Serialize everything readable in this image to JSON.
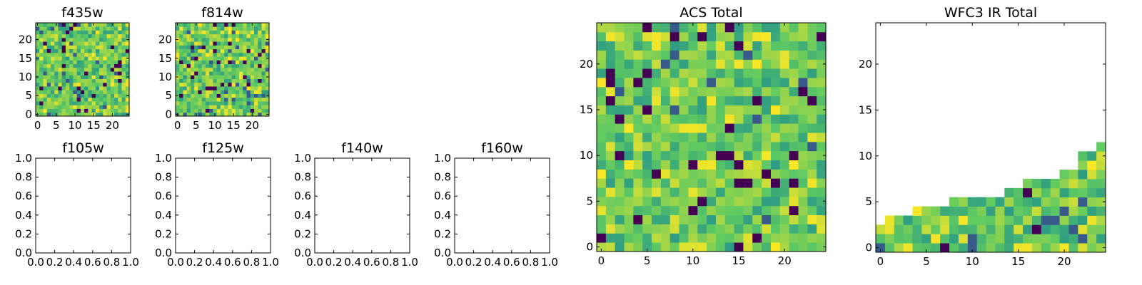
{
  "chart_data": [
    {
      "type": "heatmap",
      "title": "f435w",
      "xticks": [
        "0",
        "5",
        "10",
        "15",
        "20"
      ],
      "yticks": [
        "0",
        "5",
        "10",
        "15",
        "20"
      ],
      "xlim": [
        -0.5,
        24.5
      ],
      "ylim": [
        -0.5,
        24.5
      ],
      "grid_size": [
        25,
        25
      ],
      "fill_rows": "all",
      "colormap": "viridis",
      "seed": 11
    },
    {
      "type": "heatmap",
      "title": "f814w",
      "xticks": [
        "0",
        "5",
        "10",
        "15",
        "20"
      ],
      "yticks": [
        "0",
        "5",
        "10",
        "15",
        "20"
      ],
      "xlim": [
        -0.5,
        24.5
      ],
      "ylim": [
        -0.5,
        24.5
      ],
      "grid_size": [
        25,
        25
      ],
      "fill_rows": "all",
      "colormap": "viridis",
      "seed": 23
    },
    {
      "type": "heatmap",
      "title": "f105w",
      "xticks": [
        "0.0",
        "0.2",
        "0.4",
        "0.6",
        "0.8",
        "1.0"
      ],
      "yticks": [
        "0.0",
        "0.2",
        "0.4",
        "0.6",
        "0.8",
        "1.0"
      ],
      "xlim": [
        0,
        1
      ],
      "ylim": [
        0,
        1
      ],
      "empty": true
    },
    {
      "type": "heatmap",
      "title": "f125w",
      "xticks": [
        "0.0",
        "0.2",
        "0.4",
        "0.6",
        "0.8",
        "1.0"
      ],
      "yticks": [
        "0.0",
        "0.2",
        "0.4",
        "0.6",
        "0.8",
        "1.0"
      ],
      "xlim": [
        0,
        1
      ],
      "ylim": [
        0,
        1
      ],
      "empty": true
    },
    {
      "type": "heatmap",
      "title": "f140w",
      "xticks": [
        "0.0",
        "0.2",
        "0.4",
        "0.6",
        "0.8",
        "1.0"
      ],
      "yticks": [
        "0.0",
        "0.2",
        "0.4",
        "0.6",
        "0.8",
        "1.0"
      ],
      "xlim": [
        0,
        1
      ],
      "ylim": [
        0,
        1
      ],
      "empty": true
    },
    {
      "type": "heatmap",
      "title": "f160w",
      "xticks": [
        "0.0",
        "0.2",
        "0.4",
        "0.6",
        "0.8",
        "1.0"
      ],
      "yticks": [
        "0.0",
        "0.2",
        "0.4",
        "0.6",
        "0.8",
        "1.0"
      ],
      "xlim": [
        0,
        1
      ],
      "ylim": [
        0,
        1
      ],
      "empty": true
    },
    {
      "type": "heatmap",
      "title": "ACS Total",
      "xticks": [
        "0",
        "5",
        "10",
        "15",
        "20"
      ],
      "yticks": [
        "0",
        "5",
        "10",
        "15",
        "20"
      ],
      "xlim": [
        -0.5,
        24.5
      ],
      "ylim": [
        -0.5,
        24.5
      ],
      "grid_size": [
        25,
        25
      ],
      "fill_rows": "all",
      "colormap": "viridis",
      "seed": 37
    },
    {
      "type": "heatmap",
      "title": "WFC3 IR Total",
      "xticks": [
        "0",
        "5",
        "10",
        "15",
        "20"
      ],
      "yticks": [
        "0",
        "5",
        "10",
        "15",
        "20"
      ],
      "xlim": [
        -0.5,
        24.5
      ],
      "ylim": [
        -0.5,
        24.5
      ],
      "grid_size": [
        25,
        25
      ],
      "filled_rows_per_column": [
        3,
        4,
        4,
        4,
        5,
        5,
        5,
        5,
        6,
        6,
        6,
        6,
        6,
        6,
        7,
        7,
        8,
        8,
        8,
        8,
        9,
        9,
        11,
        11,
        12
      ],
      "colormap": "viridis",
      "seed": 53
    }
  ],
  "colors": {
    "viridis_dark": "#440154",
    "viridis_teal": "#21918c",
    "viridis_green": "#5ec962",
    "viridis_yellow": "#fde725"
  }
}
